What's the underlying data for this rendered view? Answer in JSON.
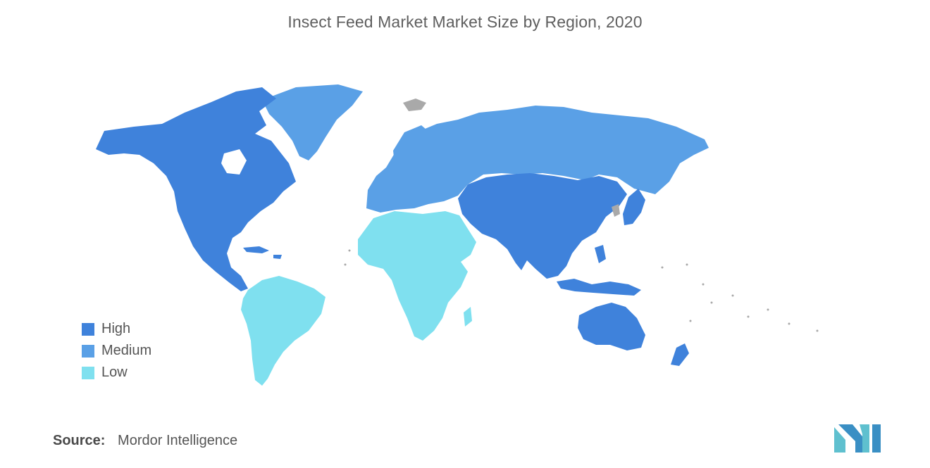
{
  "title": "Insect Feed Market Market Size by Region, 2020",
  "legend": [
    {
      "label": "High",
      "color": "#3f82db"
    },
    {
      "label": "Medium",
      "color": "#5aa0e6"
    },
    {
      "label": "Low",
      "color": "#7fe0ef"
    }
  ],
  "colors": {
    "high": "#3f82db",
    "medium": "#5aa0e6",
    "low": "#7fe0ef",
    "no_data": "#a9a9a9",
    "logo": "#5fc0cf"
  },
  "source": {
    "label": "Source:",
    "value": "Mordor Intelligence"
  },
  "regions": [
    {
      "name": "North America",
      "level": "High"
    },
    {
      "name": "Europe",
      "level": "Medium"
    },
    {
      "name": "Asia-Pacific",
      "level": "High"
    },
    {
      "name": "South America",
      "level": "Low"
    },
    {
      "name": "Middle East and Africa",
      "level": "Low"
    }
  ]
}
